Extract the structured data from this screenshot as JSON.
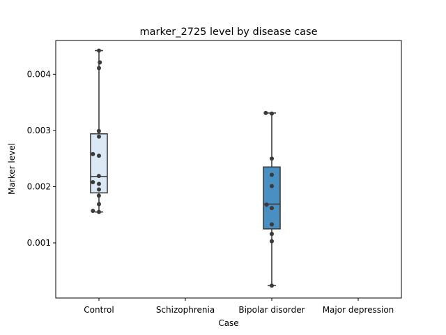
{
  "chart_data": {
    "type": "box",
    "title": "marker_2725 level by disease case",
    "xlabel": "Case",
    "ylabel": "Marker level",
    "categories": [
      "Control",
      "Schizophrenia",
      "Bipolar disorder",
      "Major depression"
    ],
    "ylim": [
      2e-05,
      0.0046
    ],
    "yticks": [
      0.001,
      0.002,
      0.003,
      0.004
    ],
    "ytick_labels": [
      "0.001",
      "0.002",
      "0.003",
      "0.004"
    ],
    "grid": false,
    "boxes": [
      {
        "category": "Control",
        "q1": 0.00189,
        "median": 0.00218,
        "q3": 0.00294,
        "whisker_low": 0.00155,
        "whisker_high": 0.00442,
        "color": "#dbe9f6"
      },
      {
        "category": "Bipolar disorder",
        "q1": 0.00125,
        "median": 0.00169,
        "q3": 0.00235,
        "whisker_low": 0.00024,
        "whisker_high": 0.00331,
        "color": "#4a8fc1"
      }
    ],
    "points": [
      {
        "category": "Control",
        "values": [
          0.00442,
          0.00421,
          0.00411,
          0.00299,
          0.00289,
          0.00258,
          0.00255,
          0.00219,
          0.00208,
          0.00205,
          0.00195,
          0.00184,
          0.00169,
          0.00157,
          0.00155
        ],
        "offsets": [
          0.0,
          0.01,
          0.0,
          -0.001,
          0.0,
          -0.07,
          0.0,
          -0.001,
          -0.07,
          0.0,
          0.0,
          -0.001,
          0.0,
          -0.07,
          0.0
        ]
      },
      {
        "category": "Bipolar disorder",
        "values": [
          0.00331,
          0.0033,
          0.0025,
          0.00221,
          0.00201,
          0.00168,
          0.00162,
          0.00133,
          0.00116,
          0.00103,
          0.00024
        ],
        "offsets": [
          -0.07,
          0.0,
          0.0,
          0.0,
          0.0,
          -0.06,
          0.0,
          0.0,
          0.0,
          0.0,
          0.0
        ]
      }
    ],
    "colors": {
      "point": "#3a3a3a",
      "line": "#3d3d3d"
    }
  }
}
